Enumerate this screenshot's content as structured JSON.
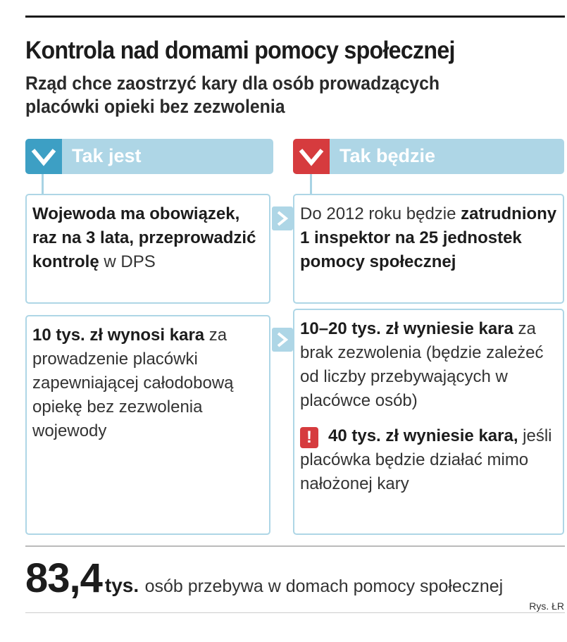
{
  "title": "Kontrola nad domami pomocy społecznej",
  "subtitle": "Rząd chce zaostrzyć kary dla osób prowadzących placówki opieki  bez zezwolenia",
  "columns": {
    "left_header": "Tak jest",
    "right_header": "Tak będzie"
  },
  "colors": {
    "header_bg": "#aed6e6",
    "left_accent": "#3d9fc4",
    "right_accent": "#d63b3e"
  },
  "rows": [
    {
      "left": {
        "bold": "Wojewoda ma obowiązek, raz na 3 lata, przeprowadzić kontrolę",
        "normal": " w DPS"
      },
      "right": {
        "normal": "Do 2012 roku będzie ",
        "bold": "zatrudniony 1 inspektor na 25 jednostek pomocy społecznej"
      }
    },
    {
      "left": {
        "bold": "10 tys. zł wynosi kara",
        "normal": " za prowadzenie placówki zapewniającej całodobową opiekę bez zezwolenia wojewody"
      },
      "right": {
        "bold": "10–20 tys. zł wyniesie kara",
        "normal": " za brak zezwolenia (będzie zależeć od liczby przebywających w placówce osób)",
        "warning_mark": "!",
        "warning_bold": "40 tys. zł wyniesie kara,",
        "warning_normal": " jeśli placówka będzie działać mimo nałożonej kary"
      }
    }
  ],
  "stat": {
    "value": "83,4",
    "unit": "tys.",
    "description": "osób przebywa w domach pomocy społecznej"
  },
  "credit": "Rys. ŁR"
}
